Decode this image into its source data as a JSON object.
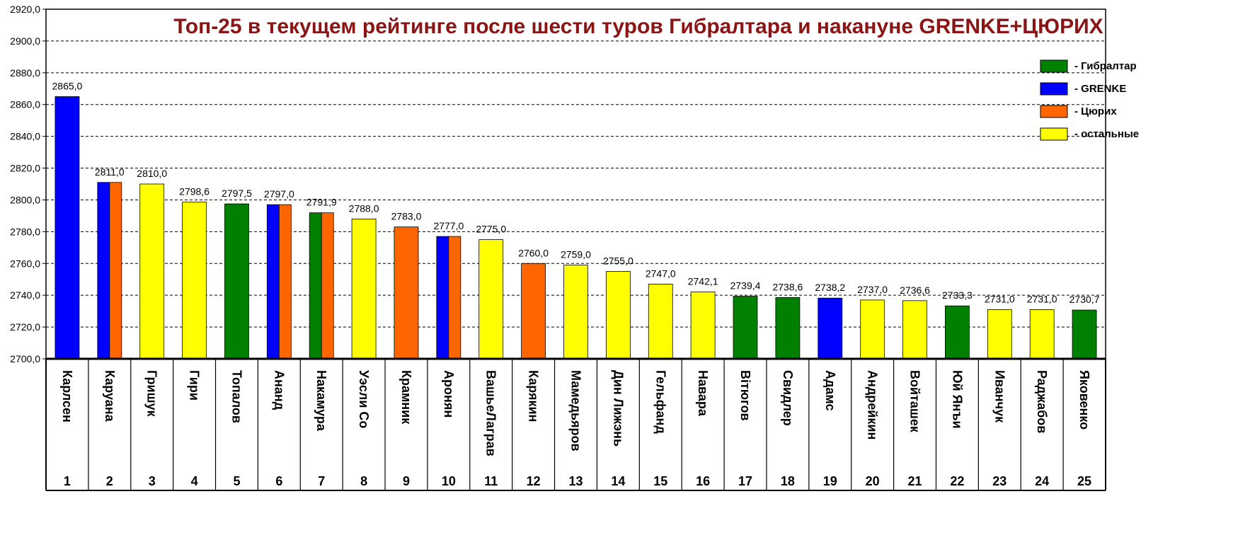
{
  "chart_data": {
    "type": "bar",
    "title": "Топ-25 в текущем рейтинге после шести туров Гибралтара и накануне GRENKE+ЦЮРИХ",
    "ylim": [
      2700,
      2920
    ],
    "ytick_step": 20,
    "ytick_labels": [
      "2700,0",
      "2720,0",
      "2740,0",
      "2760,0",
      "2780,0",
      "2800,0",
      "2820,0",
      "2840,0",
      "2860,0",
      "2880,0",
      "2900,0",
      "2920,0"
    ],
    "grid": true,
    "legend_position": "top-right",
    "legend": [
      {
        "label": "- Гибралтар",
        "color": "#008000"
      },
      {
        "label": "- GRENKE",
        "color": "#0000ff"
      },
      {
        "label": "- Цюрих",
        "color": "#ff6600"
      },
      {
        "label": "- остальные",
        "color": "#ffff00"
      }
    ],
    "players": [
      {
        "rank": "1",
        "name": "Карлсен",
        "value": 2865.0,
        "label": "2865,0",
        "colors": [
          "#0000ff"
        ]
      },
      {
        "rank": "2",
        "name": "Каруана",
        "value": 2811.0,
        "label": "2811,0",
        "colors": [
          "#0000ff",
          "#ff6600"
        ]
      },
      {
        "rank": "3",
        "name": "Гришук",
        "value": 2810.0,
        "label": "2810,0",
        "colors": [
          "#ffff00"
        ]
      },
      {
        "rank": "4",
        "name": "Гири",
        "value": 2798.6,
        "label": "2798,6",
        "colors": [
          "#ffff00"
        ]
      },
      {
        "rank": "5",
        "name": "Топалов",
        "value": 2797.5,
        "label": "2797,5",
        "colors": [
          "#008000"
        ]
      },
      {
        "rank": "6",
        "name": "Ананд",
        "value": 2797.0,
        "label": "2797,0",
        "colors": [
          "#0000ff",
          "#ff6600"
        ]
      },
      {
        "rank": "7",
        "name": "Накамура",
        "value": 2791.9,
        "label": "2791,9",
        "colors": [
          "#008000",
          "#ff6600"
        ]
      },
      {
        "rank": "8",
        "name": "Уэсли Со",
        "value": 2788.0,
        "label": "2788,0",
        "colors": [
          "#ffff00"
        ]
      },
      {
        "rank": "9",
        "name": "Крамник",
        "value": 2783.0,
        "label": "2783,0",
        "colors": [
          "#ff6600"
        ]
      },
      {
        "rank": "10",
        "name": "Аронян",
        "value": 2777.0,
        "label": "2777,0",
        "colors": [
          "#0000ff",
          "#ff6600"
        ]
      },
      {
        "rank": "11",
        "name": "ВашьеЛаграв",
        "value": 2775.0,
        "label": "2775,0",
        "colors": [
          "#ffff00"
        ]
      },
      {
        "rank": "12",
        "name": "Карякин",
        "value": 2760.0,
        "label": "2760,0",
        "colors": [
          "#ff6600"
        ]
      },
      {
        "rank": "13",
        "name": "Мамедьяров",
        "value": 2759.0,
        "label": "2759,0",
        "colors": [
          "#ffff00"
        ]
      },
      {
        "rank": "14",
        "name": "Дин Лижэнь",
        "value": 2755.0,
        "label": "2755,0",
        "colors": [
          "#ffff00"
        ]
      },
      {
        "rank": "15",
        "name": "Гельфанд",
        "value": 2747.0,
        "label": "2747,0",
        "colors": [
          "#ffff00"
        ]
      },
      {
        "rank": "16",
        "name": "Навара",
        "value": 2742.1,
        "label": "2742,1",
        "colors": [
          "#ffff00"
        ]
      },
      {
        "rank": "17",
        "name": "Вітюгов",
        "value": 2739.4,
        "label": "2739,4",
        "colors": [
          "#008000"
        ]
      },
      {
        "rank": "18",
        "name": "Свидлер",
        "value": 2738.6,
        "label": "2738,6",
        "colors": [
          "#008000"
        ]
      },
      {
        "rank": "19",
        "name": "Адамс",
        "value": 2738.2,
        "label": "2738,2",
        "colors": [
          "#0000ff"
        ]
      },
      {
        "rank": "20",
        "name": "Андрейкин",
        "value": 2737.0,
        "label": "2737,0",
        "colors": [
          "#ffff00"
        ]
      },
      {
        "rank": "21",
        "name": "Войташек",
        "value": 2736.6,
        "label": "2736,6",
        "colors": [
          "#ffff00"
        ]
      },
      {
        "rank": "22",
        "name": "Юй Янъи",
        "value": 2733.3,
        "label": "2733,3",
        "colors": [
          "#008000"
        ]
      },
      {
        "rank": "23",
        "name": "Иванчук",
        "value": 2731.0,
        "label": "2731,0",
        "colors": [
          "#ffff00"
        ]
      },
      {
        "rank": "24",
        "name": "Раджабов",
        "value": 2731.0,
        "label": "2731,0",
        "colors": [
          "#ffff00"
        ]
      },
      {
        "rank": "25",
        "name": "Яковенко",
        "value": 2730.7,
        "label": "2730,7",
        "colors": [
          "#008000"
        ]
      }
    ]
  }
}
